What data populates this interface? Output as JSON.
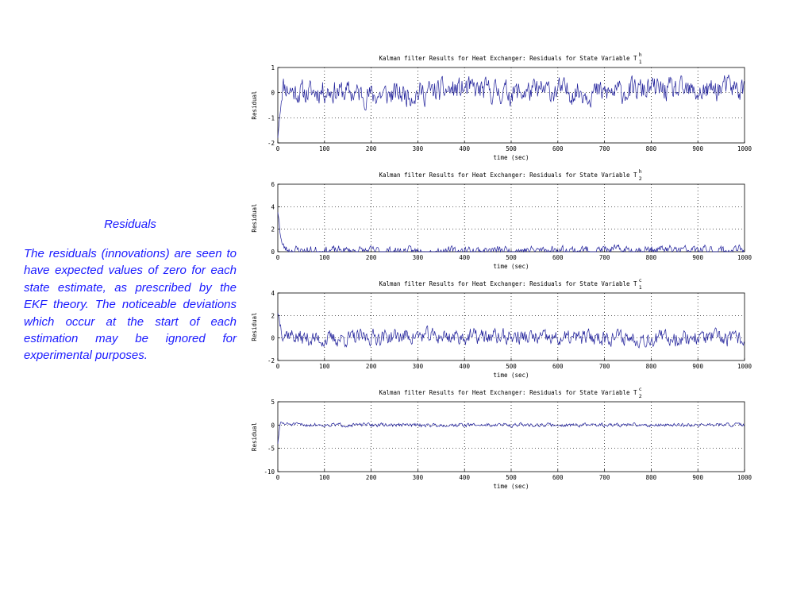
{
  "text": {
    "heading": "Residuals",
    "body": "The residuals (innovations) are seen to have expected values of zero for each state estimate, as prescribed by the EKF theory. The noticeable deviations which occur at the start of each estimation may be ignored for experimental purposes."
  },
  "colors": {
    "trace": "#1f1f9a",
    "grid": "#000000",
    "text_panel": "#1a1aff"
  },
  "chart_data": [
    {
      "type": "line",
      "title": "Kalman filter Results for Heat Exchanger: Residuals for State Variable T",
      "title_sub": "1",
      "title_sup": "h",
      "xlabel": "time (sec)",
      "ylabel": "Residual",
      "xlim": [
        0,
        1000
      ],
      "ylim": [
        -2,
        1
      ],
      "xticks": [
        0,
        100,
        200,
        300,
        400,
        500,
        600,
        700,
        800,
        900,
        1000
      ],
      "yticks": [
        -2,
        -1,
        0,
        1
      ],
      "grid": true,
      "series": [
        {
          "initial": -1.8,
          "settle": 0.4,
          "amplitude": 0.4,
          "mean": 0.05,
          "seed": 11,
          "points": [
            [
              0,
              -1.8
            ],
            [
              10,
              0.4
            ],
            [
              30,
              0.1
            ],
            [
              60,
              -0.3
            ],
            [
              100,
              0.3
            ],
            [
              200,
              -0.7
            ],
            [
              300,
              -0.3
            ],
            [
              400,
              0.5
            ],
            [
              500,
              -0.2
            ],
            [
              600,
              0.2
            ],
            [
              700,
              -0.3
            ],
            [
              800,
              0.5
            ],
            [
              900,
              -0.2
            ],
            [
              960,
              0.8
            ],
            [
              1000,
              0.4
            ]
          ]
        }
      ]
    },
    {
      "type": "line",
      "title": "Kalman filter Results for Heat Exchanger: Residuals for State Variable T",
      "title_sub": "2",
      "title_sup": "h",
      "xlabel": "time (sec)",
      "ylabel": "Residual",
      "xlim": [
        0,
        1000
      ],
      "ylim": [
        0,
        6
      ],
      "xticks": [
        0,
        100,
        200,
        300,
        400,
        500,
        600,
        700,
        800,
        900,
        1000
      ],
      "yticks": [
        0,
        2,
        4,
        6
      ],
      "grid": true,
      "series": [
        {
          "initial": 3.5,
          "settle": 0.2,
          "amplitude": 0.35,
          "mean": 0.1,
          "seed": 23,
          "points": [
            [
              0,
              3.5
            ],
            [
              10,
              0.6
            ],
            [
              20,
              0.2
            ],
            [
              100,
              0.1
            ],
            [
              300,
              -0.2
            ],
            [
              500,
              0.2
            ],
            [
              600,
              0.3
            ],
            [
              800,
              0.4
            ],
            [
              900,
              0.2
            ],
            [
              1000,
              0.3
            ]
          ]
        }
      ]
    },
    {
      "type": "line",
      "title": "Kalman filter Results for Heat Exchanger: Residuals for State Variable T",
      "title_sub": "1",
      "title_sup": "c",
      "xlabel": "time (sec)",
      "ylabel": "Residual",
      "xlim": [
        0,
        1000
      ],
      "ylim": [
        -2,
        4
      ],
      "xticks": [
        0,
        100,
        200,
        300,
        400,
        500,
        600,
        700,
        800,
        900,
        1000
      ],
      "yticks": [
        -2,
        0,
        2,
        4
      ],
      "grid": true,
      "series": [
        {
          "initial": 2.2,
          "settle": 0.5,
          "amplitude": 0.6,
          "mean": 0.0,
          "seed": 37,
          "points": [
            [
              0,
              2.2
            ],
            [
              10,
              0.8
            ],
            [
              50,
              0.0
            ],
            [
              100,
              -0.7
            ],
            [
              200,
              0.4
            ],
            [
              300,
              0.9
            ],
            [
              400,
              0.5
            ],
            [
              500,
              0.5
            ],
            [
              600,
              -0.5
            ],
            [
              700,
              0.6
            ],
            [
              800,
              -0.3
            ],
            [
              900,
              0.4
            ],
            [
              1000,
              -0.8
            ]
          ]
        }
      ]
    },
    {
      "type": "line",
      "title": "Kalman filter Results for Heat Exchanger: Residuals for State Variable T",
      "title_sub": "2",
      "title_sup": "c",
      "xlabel": "time (sec)",
      "ylabel": "Residual",
      "xlim": [
        0,
        1000
      ],
      "ylim": [
        -10,
        5
      ],
      "xticks": [
        0,
        100,
        200,
        300,
        400,
        500,
        600,
        700,
        800,
        900,
        1000
      ],
      "yticks": [
        -10,
        -5,
        0,
        5
      ],
      "grid": true,
      "series": [
        {
          "initial": -4.0,
          "settle": 0.6,
          "amplitude": 0.35,
          "mean": 0.0,
          "seed": 51,
          "points": [
            [
              0,
              -4.0
            ],
            [
              5,
              0.5
            ],
            [
              20,
              0.3
            ],
            [
              100,
              0.2
            ],
            [
              300,
              0.0
            ],
            [
              500,
              0.2
            ],
            [
              700,
              0.0
            ],
            [
              900,
              0.2
            ],
            [
              1000,
              0.1
            ]
          ]
        }
      ]
    }
  ]
}
